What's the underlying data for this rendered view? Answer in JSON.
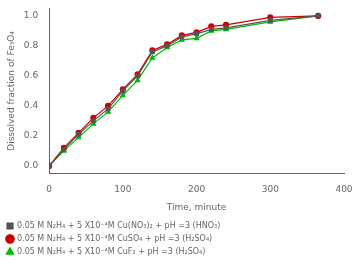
{
  "chart_data": {
    "type": "line",
    "xlabel": "Time, minute",
    "ylabel": "Dissolved fraction of Fe₃O₄",
    "x": [
      0,
      20,
      40,
      60,
      80,
      100,
      120,
      140,
      160,
      180,
      200,
      220,
      240,
      300,
      365
    ],
    "series": [
      {
        "name": "0.05 M N₂H₄ + 5 X10⁻⁴M Cu(NO₃)₂ + pH =3 (HNO₃)",
        "color": "#555555",
        "marker": "square",
        "values": [
          0.0,
          0.11,
          0.21,
          0.3,
          0.38,
          0.5,
          0.6,
          0.76,
          0.8,
          0.86,
          0.88,
          0.91,
          0.92,
          0.97,
          1.0
        ]
      },
      {
        "name": "0.05 M N₂H₄ + 5 X10⁻⁴M CuSO₄ + pH =3 (H₂SO₄)",
        "color": "#cc0000",
        "marker": "circle",
        "values": [
          0.0,
          0.12,
          0.22,
          0.32,
          0.4,
          0.51,
          0.61,
          0.77,
          0.81,
          0.87,
          0.89,
          0.93,
          0.94,
          0.99,
          1.0
        ]
      },
      {
        "name": "0.05 M N₂H₄ + 5 X10⁻⁴M CuF₂ + pH =3 (H₂SO₄)",
        "color": "#00bb00",
        "marker": "triangle",
        "values": [
          0.0,
          0.1,
          0.19,
          0.28,
          0.36,
          0.47,
          0.57,
          0.72,
          0.79,
          0.84,
          0.85,
          0.9,
          0.91,
          0.96,
          1.0
        ]
      }
    ],
    "xlim": [
      0,
      400
    ],
    "ylim": [
      -0.05,
      1.05
    ],
    "xticks": [
      0,
      100,
      200,
      300,
      400
    ],
    "yticks": [
      {
        "value": 0,
        "label": "0.0"
      },
      0.2,
      0.4,
      0.6,
      0.8,
      {
        "value": 1,
        "label": "1.0"
      }
    ],
    "grid": false,
    "legend": "bottom"
  }
}
